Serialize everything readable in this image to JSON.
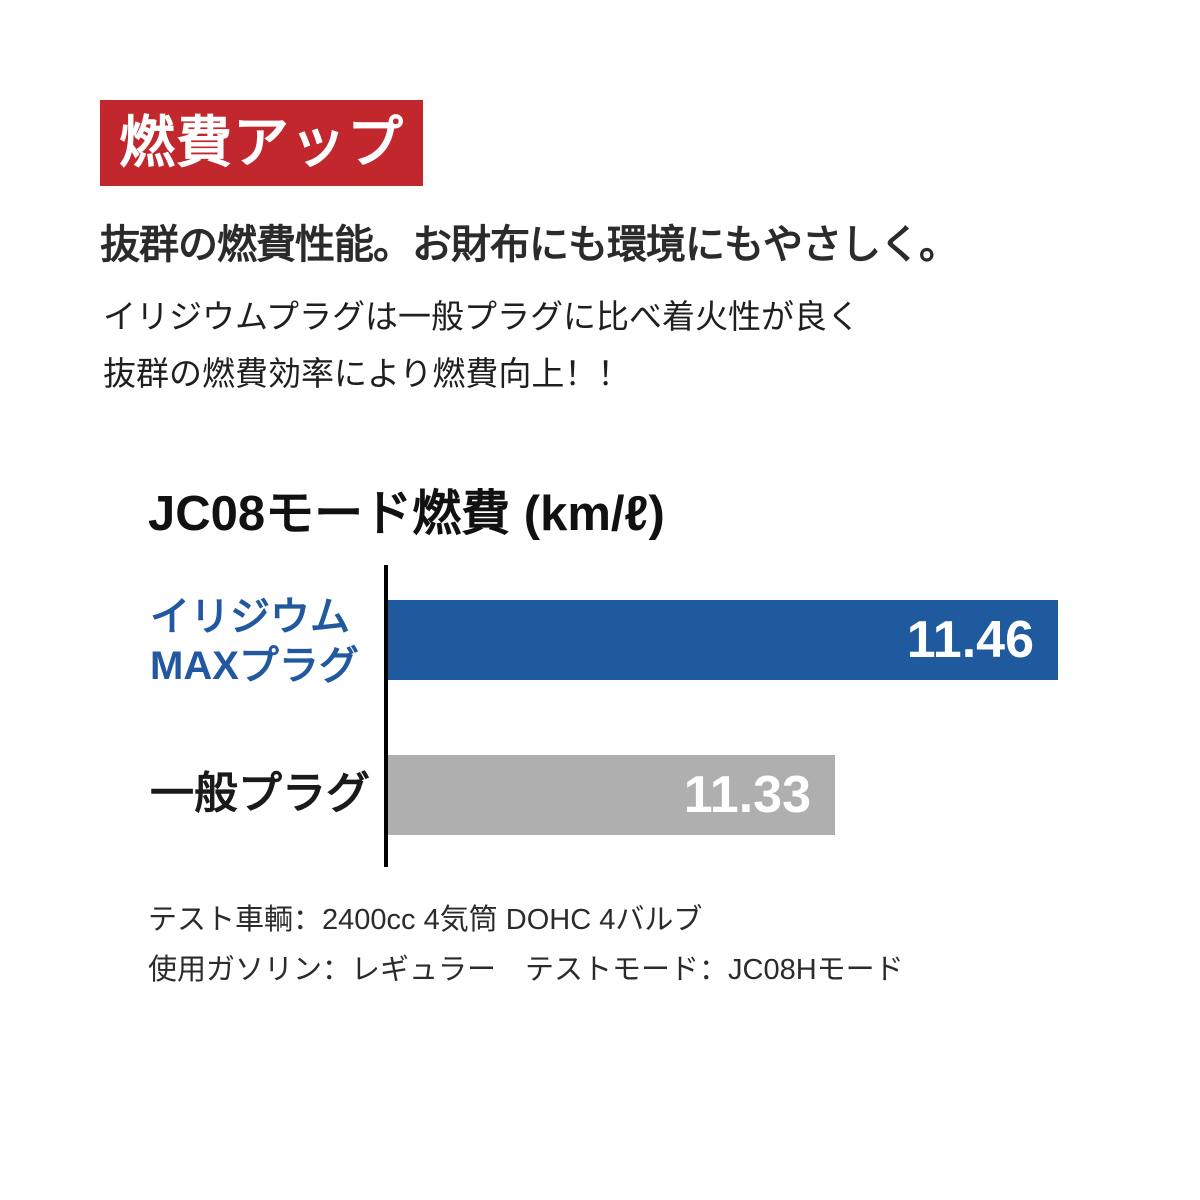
{
  "header": {
    "badge_label": "燃費アップ",
    "badge_bg": "#c2272e",
    "headline": "抜群の燃費性能。お財布にも環境にもやさしく。",
    "body_lines": [
      "イリジウムプラグは一般プラグに比べ着火性が良く",
      "抜群の燃費効率により燃費向上！！"
    ]
  },
  "chart_data": {
    "type": "bar",
    "orientation": "horizontal",
    "title": "JC08モード燃費 (km/ℓ)",
    "value_unit": "km/ℓ",
    "categories": [
      "イリジウムMAXプラグ",
      "一般プラグ"
    ],
    "values": [
      11.46,
      11.33
    ],
    "series": [
      {
        "name": "イリジウムMAXプラグ",
        "label_lines": [
          "イリジウム",
          "MAXプラグ"
        ],
        "value": 11.46,
        "value_label": "11.46",
        "bar_color": "#1f5a9e",
        "label_color": "#21589f"
      },
      {
        "name": "一般プラグ",
        "label_lines": [
          "一般プラグ"
        ],
        "value": 11.33,
        "value_label": "11.33",
        "bar_color": "#afafb0",
        "label_color": "#1a1a1a"
      }
    ],
    "xlim": [
      11.07,
      11.46
    ],
    "grid": false,
    "legend": false,
    "axis_style": "single-left-vertical-line",
    "value_labels_position": "inside-end"
  },
  "footnotes": [
    "テスト車輌：2400cc 4気筒 DOHC 4バルブ",
    "使用ガソリン：レギュラー　テストモード：JC08Hモード"
  ]
}
